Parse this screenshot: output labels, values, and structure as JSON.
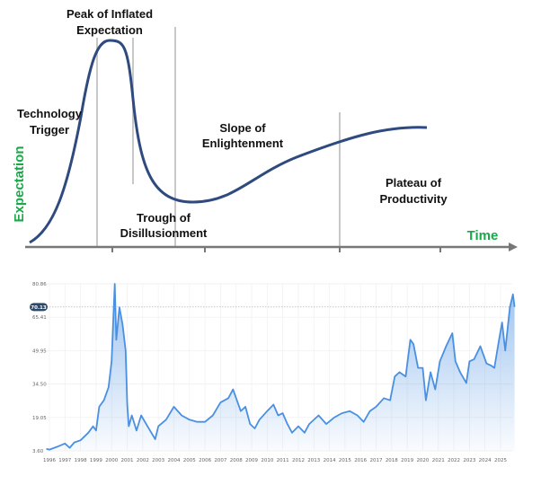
{
  "hype_cycle": {
    "phases": [
      {
        "line1": "Technology",
        "line2": "Trigger"
      },
      {
        "line1": "Peak of Inflated",
        "line2": "Expectation"
      },
      {
        "line1": "Trough of",
        "line2": "Disillusionment"
      },
      {
        "line1": "Slope of",
        "line2": "Enlightenment"
      },
      {
        "line1": "Plateau of",
        "line2": "Productivity"
      }
    ],
    "y_axis_label": "Expectation",
    "x_axis_label": "Time",
    "curve_color": "#2e4a7f",
    "label_color": "#1aa84a"
  },
  "chart_data": {
    "type": "area",
    "x_ticks": [
      "1996",
      "1997",
      "1998",
      "1999",
      "2000",
      "2001",
      "2002",
      "2003",
      "2004",
      "2005",
      "2006",
      "2007",
      "2008",
      "2009",
      "2010",
      "2011",
      "2012",
      "2013",
      "2014",
      "2015",
      "2016",
      "2017",
      "2018",
      "2019",
      "2020",
      "2021",
      "2022",
      "2023",
      "2024",
      "2025"
    ],
    "y_ticks": [
      "3.60",
      "19.05",
      "34.50",
      "49.95",
      "65.41",
      "80.86"
    ],
    "ylim": [
      3.6,
      80.86
    ],
    "current_value": "70.13",
    "grid": true,
    "line_color": "#4a90e2",
    "x": [
      1995.8,
      1996.0,
      1996.5,
      1997.0,
      1997.3,
      1997.6,
      1998.0,
      1998.5,
      1998.8,
      1999.0,
      1999.2,
      1999.5,
      1999.8,
      2000.0,
      2000.2,
      2000.3,
      2000.5,
      2000.7,
      2000.9,
      2001.0,
      2001.1,
      2001.3,
      2001.6,
      2001.9,
      2002.3,
      2002.8,
      2003.0,
      2003.5,
      2004.0,
      2004.5,
      2005.0,
      2005.5,
      2006.0,
      2006.5,
      2007.0,
      2007.5,
      2007.8,
      2008.3,
      2008.6,
      2008.9,
      2009.2,
      2009.5,
      2010.0,
      2010.4,
      2010.7,
      2011.0,
      2011.3,
      2011.6,
      2012.0,
      2012.4,
      2012.7,
      2013.3,
      2013.8,
      2014.3,
      2014.8,
      2015.3,
      2015.8,
      2016.2,
      2016.6,
      2017.0,
      2017.5,
      2017.9,
      2018.2,
      2018.5,
      2018.9,
      2019.2,
      2019.4,
      2019.7,
      2020.0,
      2020.2,
      2020.5,
      2020.8,
      2021.1,
      2021.5,
      2021.9,
      2022.1,
      2022.4,
      2022.8,
      2023.0,
      2023.3,
      2023.7,
      2024.1,
      2024.4,
      2024.6,
      2024.9,
      2025.1,
      2025.3,
      2025.6,
      2025.8,
      2025.9
    ],
    "y": [
      4.5,
      4.2,
      5.5,
      7,
      5,
      7.5,
      8.5,
      12,
      15,
      13,
      24,
      27,
      33,
      45,
      80.86,
      55,
      70,
      62,
      50,
      25,
      15,
      20,
      13,
      20,
      15,
      9,
      15,
      18,
      24,
      20,
      18,
      17,
      17,
      20,
      26,
      28,
      32,
      22,
      24,
      16,
      14,
      18,
      22,
      25,
      20,
      21,
      16,
      12,
      15,
      12,
      16,
      20,
      16,
      19,
      21,
      22,
      20,
      17,
      22,
      24,
      28,
      27,
      38,
      40,
      38,
      55,
      53,
      42,
      42,
      27,
      40,
      32,
      45,
      52,
      58,
      45,
      40,
      35,
      45,
      46,
      52,
      44,
      43,
      42,
      55,
      63,
      50,
      70,
      76,
      70.13
    ]
  }
}
